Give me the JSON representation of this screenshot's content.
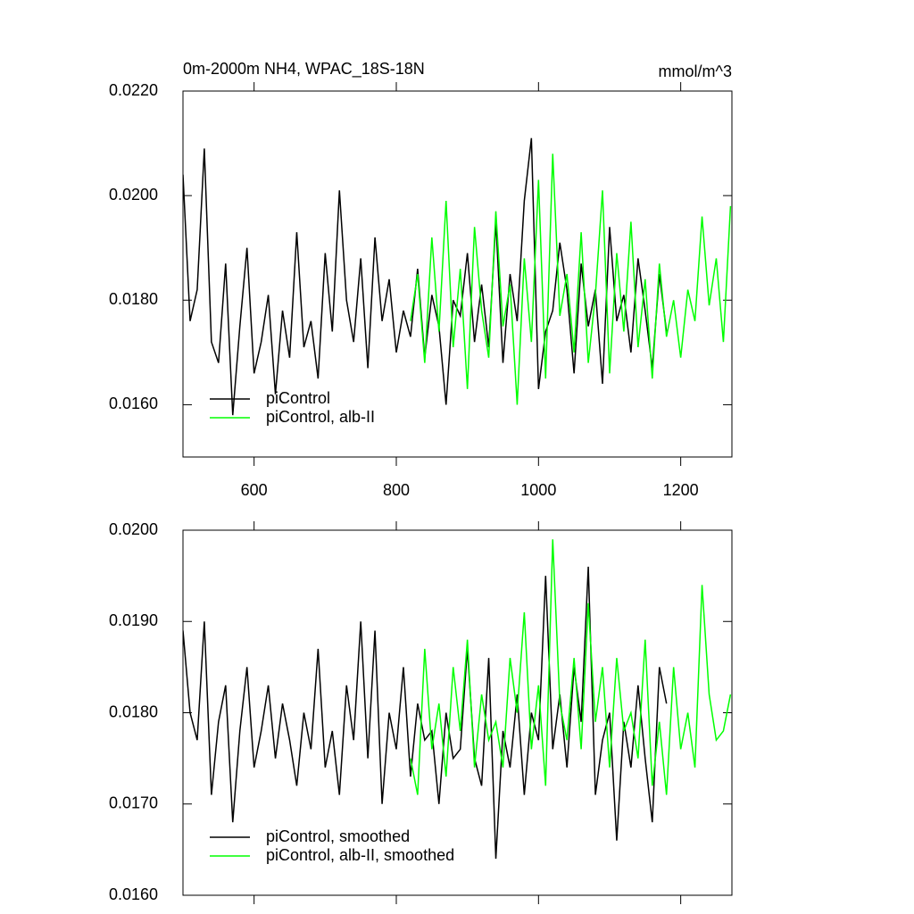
{
  "chart_data": [
    {
      "type": "line",
      "title": "0m-2000m NH4, WPAC_18S-18N",
      "units": "mmol/m^3",
      "xlim": [
        500,
        1272
      ],
      "xticks": [
        600,
        800,
        1000,
        1200
      ],
      "xtick_labels": true,
      "ylim": [
        0.015,
        0.022
      ],
      "yticks": [
        {
          "value": 0.016,
          "label": "0.0160"
        },
        {
          "value": 0.018,
          "label": "0.0180"
        },
        {
          "value": 0.02,
          "label": "0.0200"
        },
        {
          "value": 0.022,
          "label": "0.0220"
        }
      ],
      "legend": "lower left",
      "series": [
        {
          "name": "piControl",
          "color": "#000000",
          "x": [
            500,
            510,
            520,
            530,
            540,
            550,
            560,
            570,
            580,
            590,
            600,
            610,
            620,
            630,
            640,
            650,
            660,
            670,
            680,
            690,
            700,
            710,
            720,
            730,
            740,
            750,
            760,
            770,
            780,
            790,
            800,
            810,
            820,
            830,
            840,
            850,
            860,
            870,
            880,
            890,
            900,
            910,
            920,
            930,
            940,
            950,
            960,
            970,
            980,
            990,
            1000,
            1010,
            1020,
            1030,
            1040,
            1050,
            1060,
            1070,
            1080,
            1090,
            1100,
            1110,
            1120,
            1130,
            1140,
            1150,
            1160,
            1170,
            1180
          ],
          "values": [
            0.0204,
            0.0176,
            0.0182,
            0.0209,
            0.0172,
            0.0168,
            0.0187,
            0.0158,
            0.0175,
            0.019,
            0.0166,
            0.0172,
            0.0181,
            0.0162,
            0.0178,
            0.0169,
            0.0193,
            0.0171,
            0.0176,
            0.0165,
            0.0189,
            0.0174,
            0.0201,
            0.018,
            0.0172,
            0.0188,
            0.0167,
            0.0192,
            0.0176,
            0.0184,
            0.017,
            0.0178,
            0.0173,
            0.0186,
            0.0169,
            0.0181,
            0.0175,
            0.016,
            0.018,
            0.0177,
            0.0189,
            0.0172,
            0.0183,
            0.0171,
            0.0195,
            0.0168,
            0.0185,
            0.0176,
            0.0199,
            0.0211,
            0.0163,
            0.0174,
            0.0178,
            0.0191,
            0.0182,
            0.0166,
            0.0187,
            0.0175,
            0.0182,
            0.0164,
            0.0194,
            0.0176,
            0.0181,
            0.017,
            0.0188,
            0.0178,
            0.0167,
            0.0185,
            0.0174
          ]
        },
        {
          "name": "piControl, alb-II",
          "color": "#00ff00",
          "x": [
            820,
            830,
            840,
            850,
            860,
            870,
            880,
            890,
            900,
            910,
            920,
            930,
            940,
            950,
            960,
            970,
            980,
            990,
            1000,
            1010,
            1020,
            1030,
            1040,
            1050,
            1060,
            1070,
            1080,
            1090,
            1100,
            1110,
            1120,
            1130,
            1140,
            1150,
            1160,
            1170,
            1180,
            1190,
            1200,
            1210,
            1220,
            1230,
            1240,
            1250,
            1260,
            1270
          ],
          "values": [
            0.0176,
            0.0185,
            0.0168,
            0.0192,
            0.0174,
            0.0199,
            0.0171,
            0.0186,
            0.0163,
            0.0194,
            0.0178,
            0.0169,
            0.0197,
            0.0175,
            0.0183,
            0.016,
            0.0188,
            0.0172,
            0.0203,
            0.0165,
            0.0208,
            0.0177,
            0.0185,
            0.017,
            0.0193,
            0.0168,
            0.0181,
            0.0201,
            0.0166,
            0.0189,
            0.0174,
            0.0195,
            0.0171,
            0.0184,
            0.0165,
            0.0187,
            0.0173,
            0.018,
            0.0169,
            0.0182,
            0.0176,
            0.0196,
            0.0179,
            0.0188,
            0.0172,
            0.0198
          ]
        }
      ]
    },
    {
      "type": "line",
      "xlim": [
        500,
        1272
      ],
      "xticks": [
        600,
        800,
        1000,
        1200
      ],
      "xtick_labels": false,
      "ylim": [
        0.016,
        0.02
      ],
      "yticks": [
        {
          "value": 0.016,
          "label": "0.0160"
        },
        {
          "value": 0.017,
          "label": "0.0170"
        },
        {
          "value": 0.018,
          "label": "0.0180"
        },
        {
          "value": 0.019,
          "label": "0.0190"
        },
        {
          "value": 0.02,
          "label": "0.0200"
        }
      ],
      "legend": "lower left",
      "series": [
        {
          "name": "piControl, smoothed",
          "color": "#000000",
          "x": [
            500,
            510,
            520,
            530,
            540,
            550,
            560,
            570,
            580,
            590,
            600,
            610,
            620,
            630,
            640,
            650,
            660,
            670,
            680,
            690,
            700,
            710,
            720,
            730,
            740,
            750,
            760,
            770,
            780,
            790,
            800,
            810,
            820,
            830,
            840,
            850,
            860,
            870,
            880,
            890,
            900,
            910,
            920,
            930,
            940,
            950,
            960,
            970,
            980,
            990,
            1000,
            1010,
            1020,
            1030,
            1040,
            1050,
            1060,
            1070,
            1080,
            1090,
            1100,
            1110,
            1120,
            1130,
            1140,
            1150,
            1160,
            1170,
            1180
          ],
          "values": [
            0.0189,
            0.018,
            0.0177,
            0.019,
            0.0171,
            0.0179,
            0.0183,
            0.0168,
            0.0178,
            0.0185,
            0.0174,
            0.0178,
            0.0183,
            0.0175,
            0.0181,
            0.0177,
            0.0172,
            0.018,
            0.0176,
            0.0187,
            0.0174,
            0.0178,
            0.0171,
            0.0183,
            0.0177,
            0.019,
            0.0175,
            0.0189,
            0.017,
            0.018,
            0.0176,
            0.0185,
            0.0173,
            0.0181,
            0.0177,
            0.0178,
            0.017,
            0.018,
            0.0175,
            0.0176,
            0.0187,
            0.0175,
            0.0172,
            0.0186,
            0.0164,
            0.0178,
            0.0174,
            0.0182,
            0.0171,
            0.018,
            0.0177,
            0.0195,
            0.0176,
            0.0182,
            0.0174,
            0.0185,
            0.0179,
            0.0196,
            0.0171,
            0.0177,
            0.018,
            0.0166,
            0.0179,
            0.0174,
            0.0183,
            0.0175,
            0.0168,
            0.0185,
            0.0181
          ]
        },
        {
          "name": "piControl, alb-II, smoothed",
          "color": "#00ff00",
          "x": [
            820,
            830,
            840,
            850,
            860,
            870,
            880,
            890,
            900,
            910,
            920,
            930,
            940,
            950,
            960,
            970,
            980,
            990,
            1000,
            1010,
            1020,
            1030,
            1040,
            1050,
            1060,
            1070,
            1080,
            1090,
            1100,
            1110,
            1120,
            1130,
            1140,
            1150,
            1160,
            1170,
            1180,
            1190,
            1200,
            1210,
            1220,
            1230,
            1240,
            1250,
            1260,
            1270
          ],
          "values": [
            0.0175,
            0.0171,
            0.0187,
            0.0176,
            0.0181,
            0.0173,
            0.0185,
            0.0178,
            0.0188,
            0.0174,
            0.0182,
            0.0177,
            0.0179,
            0.0174,
            0.0186,
            0.018,
            0.0191,
            0.0176,
            0.0183,
            0.0172,
            0.0199,
            0.0181,
            0.0177,
            0.0186,
            0.0176,
            0.0192,
            0.0179,
            0.0185,
            0.0174,
            0.0186,
            0.0178,
            0.018,
            0.0175,
            0.0188,
            0.0172,
            0.0179,
            0.0171,
            0.0185,
            0.0176,
            0.018,
            0.0174,
            0.0194,
            0.0182,
            0.0177,
            0.0178,
            0.0182
          ]
        }
      ]
    }
  ]
}
